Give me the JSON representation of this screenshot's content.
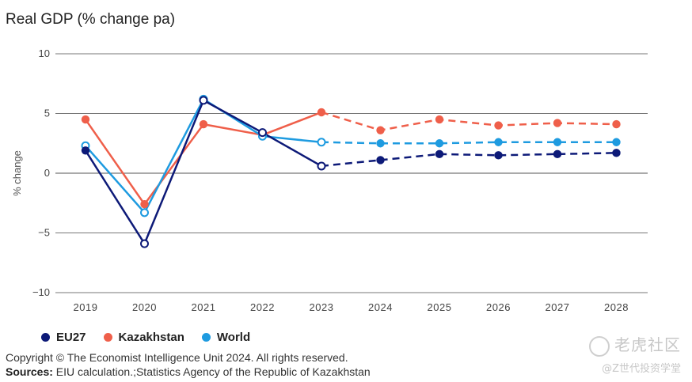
{
  "title": "Real GDP (% change pa)",
  "footer": {
    "copyright": "Copyright © The Economist Intelligence Unit 2024. All rights reserved.",
    "sources_label": "Sources:",
    "sources_text": " EIU calculation.;Statistics Agency of the Republic of Kazakhstan"
  },
  "watermark": {
    "line1": "老虎社区",
    "line2": "@Z世代投资学堂"
  },
  "chart_data": {
    "type": "line",
    "title": "Real GDP (% change pa)",
    "ylabel": "% change",
    "ylim": [
      -10,
      10
    ],
    "yticks": [
      10,
      5,
      0,
      -5,
      -10
    ],
    "ytick_labels": [
      "10",
      "5",
      "0",
      "−5",
      "−10"
    ],
    "x": [
      "2019",
      "2020",
      "2021",
      "2022",
      "2023",
      "2024",
      "2025",
      "2026",
      "2027",
      "2028"
    ],
    "forecast_from": "2023",
    "legend_position": "bottom-left",
    "series": [
      {
        "name": "EU27",
        "color": "#0d1a78",
        "values": [
          1.9,
          -5.9,
          6.1,
          3.4,
          0.6,
          1.1,
          1.6,
          1.5,
          1.6,
          1.7
        ]
      },
      {
        "name": "Kazakhstan",
        "color": "#ef5f4a",
        "values": [
          4.5,
          -2.6,
          4.1,
          3.2,
          5.1,
          3.6,
          4.5,
          4.0,
          4.2,
          4.1
        ]
      },
      {
        "name": "World",
        "color": "#1e9be0",
        "values": [
          2.3,
          -3.3,
          6.2,
          3.1,
          2.6,
          2.5,
          2.5,
          2.6,
          2.6,
          2.6
        ]
      }
    ]
  }
}
